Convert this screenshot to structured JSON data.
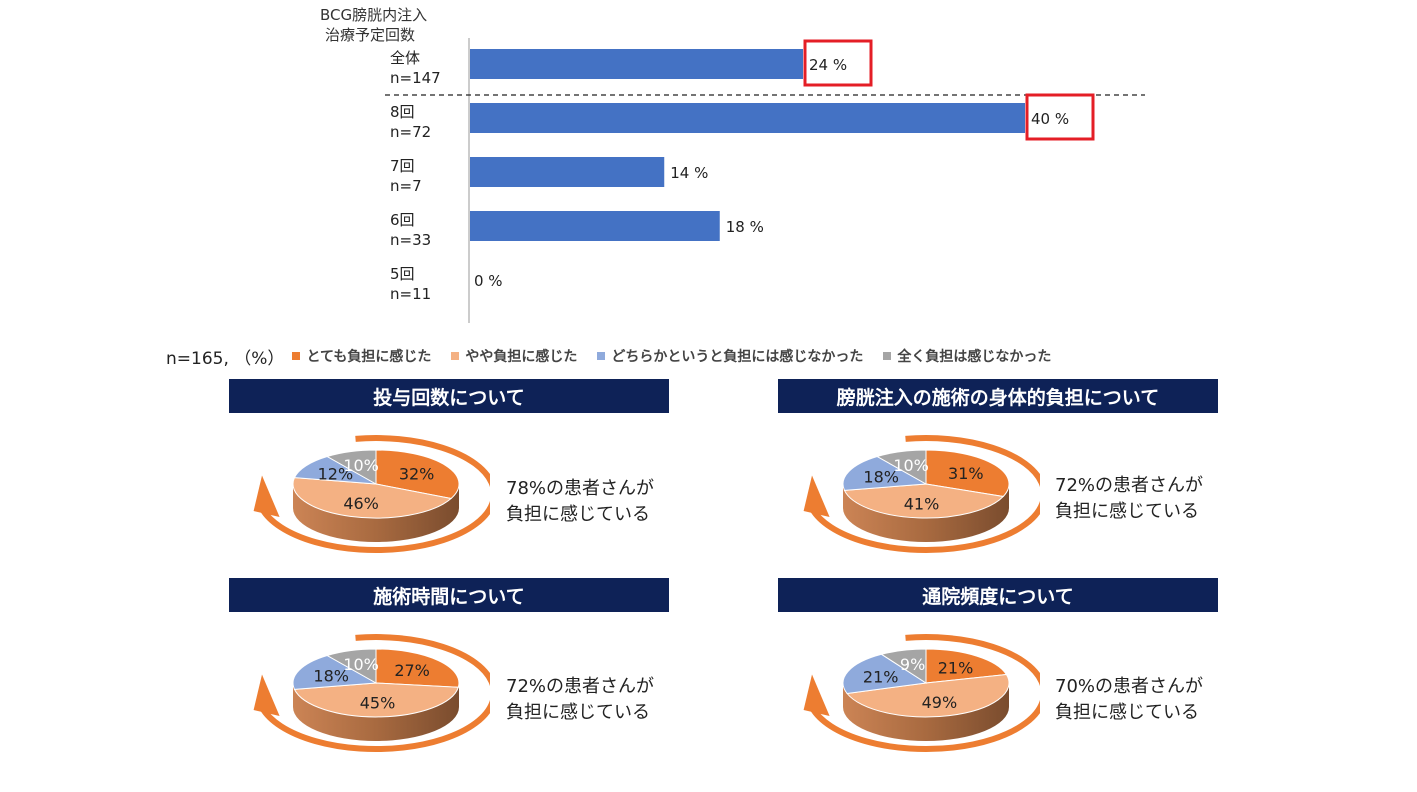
{
  "colors": {
    "bar": "#4472c4",
    "highlight": "#e41e26",
    "title_bg": "#0e2257",
    "arrow": "#ed7d31",
    "seg": [
      "#ed7d31",
      "#f4b183",
      "#8faadc",
      "#a5a5a5"
    ]
  },
  "chart_data": [
    {
      "type": "bar",
      "orientation": "horizontal",
      "ylabel": [
        "BCG膀胱内注入",
        "治療予定回数"
      ],
      "categories": [
        {
          "name": "全体",
          "n": "n=147"
        },
        {
          "name": "8回",
          "n": "n=72"
        },
        {
          "name": "7回",
          "n": "n=7"
        },
        {
          "name": "6回",
          "n": "n=33"
        },
        {
          "name": "5回",
          "n": "n=11"
        }
      ],
      "values": [
        24,
        40,
        14,
        18,
        0
      ],
      "value_labels": [
        "24 %",
        "40 %",
        "14  %",
        "18 %",
        "0   %"
      ],
      "highlighted": [
        true,
        true,
        false,
        false,
        false
      ],
      "xlim": [
        0,
        40
      ]
    },
    {
      "type": "pie",
      "title": "投与回数について",
      "labels": [
        "とても負担に感じた",
        "やや負担に感じた",
        "どちらかというと負担には感じなかった",
        "全く負担は感じなかった"
      ],
      "values": [
        32,
        46,
        12,
        10
      ],
      "value_labels": [
        "32%",
        "46%",
        "12%",
        "10%"
      ]
    },
    {
      "type": "pie",
      "title": "膀胱注入の施術の身体的負担について",
      "labels": [
        "とても負担に感じた",
        "やや負担に感じた",
        "どちらかというと負担には感じなかった",
        "全く負担は感じなかった"
      ],
      "values": [
        31,
        41,
        18,
        10
      ],
      "value_labels": [
        "31%",
        "41%",
        "18%",
        "10%"
      ]
    },
    {
      "type": "pie",
      "title": "施術時間について",
      "labels": [
        "とても負担に感じた",
        "やや負担に感じた",
        "どちらかというと負担には感じなかった",
        "全く負担は感じなかった"
      ],
      "values": [
        27,
        45,
        18,
        10
      ],
      "value_labels": [
        "27%",
        "45%",
        "18%",
        "10%"
      ]
    },
    {
      "type": "pie",
      "title": "通院頻度について",
      "labels": [
        "とても負担に感じた",
        "やや負担に感じた",
        "どちらかというと負担には感じなかった",
        "全く負担は感じなかった"
      ],
      "values": [
        21,
        49,
        21,
        9
      ],
      "value_labels": [
        "21%",
        "49%",
        "21%",
        "9%"
      ]
    }
  ],
  "legend": {
    "prefix": "n=165, （%）",
    "items": [
      {
        "label": "とても負担に感じた",
        "color": "#ed7d31"
      },
      {
        "label": "やや負担に感じた",
        "color": "#f4b183"
      },
      {
        "label": "どちらかというと負担には感じなかった",
        "color": "#8faadc"
      },
      {
        "label": "全く負担は感じなかった",
        "color": "#a5a5a5"
      }
    ]
  },
  "panels": [
    {
      "title": "投与回数について",
      "caption": [
        "78%の患者さんが",
        "負担に感じている"
      ]
    },
    {
      "title": "膀胱注入の施術の身体的負担について",
      "caption": [
        "72%の患者さんが",
        "負担に感じている"
      ]
    },
    {
      "title": "施術時間について",
      "caption": [
        "72%の患者さんが",
        "負担に感じている"
      ]
    },
    {
      "title": "通院頻度について",
      "caption": [
        "70%の患者さんが",
        "負担に感じている"
      ]
    }
  ]
}
